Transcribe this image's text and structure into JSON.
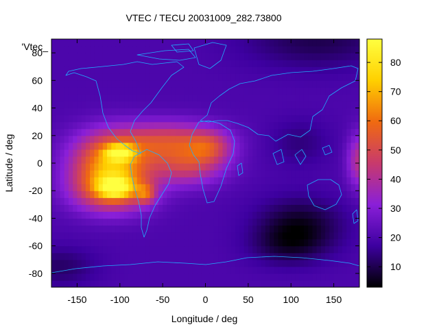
{
  "chart_data": {
    "type": "heatmap",
    "title": "VTEC / TECU 20031009_282.73800",
    "xlabel": "Longitude / deg",
    "ylabel": "Latitude / deg",
    "key_label": "'Vtec_",
    "xlim": [
      -180,
      180
    ],
    "ylim": [
      -90,
      90
    ],
    "x_ticks": [
      -150,
      -100,
      -50,
      0,
      50,
      100,
      150
    ],
    "y_ticks": [
      -80,
      -60,
      -40,
      -20,
      0,
      20,
      40,
      60,
      80
    ],
    "colorbar": {
      "range": [
        3,
        88
      ],
      "ticks": [
        10,
        20,
        30,
        40,
        50,
        60,
        70,
        80
      ],
      "colors": [
        "#000000",
        "#3d00a0",
        "#8a1fd8",
        "#c83a6c",
        "#f06a10",
        "#ffd000",
        "#ffff40"
      ]
    },
    "background_level": 20,
    "regions": [
      {
        "lon": -110,
        "lat": 4,
        "sx": 32,
        "sy": 14,
        "value": 40
      },
      {
        "lon": -110,
        "lat": -18,
        "sx": 32,
        "sy": 12,
        "value": 40
      },
      {
        "lon": -40,
        "lat": 16,
        "sx": 40,
        "sy": 10,
        "value": 28
      },
      {
        "lon": -20,
        "lat": -2,
        "sx": 30,
        "sy": 10,
        "value": 24
      },
      {
        "lon": 5,
        "lat": 12,
        "sx": 18,
        "sy": 8,
        "value": 18
      },
      {
        "lon": -100,
        "lat": 8,
        "sx": 12,
        "sy": 4,
        "value": 30
      },
      {
        "lon": -105,
        "lat": -18,
        "sx": 14,
        "sy": 5,
        "value": 30
      },
      {
        "lon": -70,
        "lat": -22,
        "sx": 8,
        "sy": 5,
        "value": 22
      },
      {
        "lon": 180,
        "lat": 2,
        "sx": 10,
        "sy": 14,
        "value": 22
      },
      {
        "lon": 110,
        "lat": -45,
        "sx": 35,
        "sy": 14,
        "value": -14
      },
      {
        "lon": 95,
        "lat": -60,
        "sx": 30,
        "sy": 10,
        "value": -8
      },
      {
        "lon": 130,
        "lat": 90,
        "sx": 60,
        "sy": 15,
        "value": -10
      },
      {
        "lon": 110,
        "lat": 15,
        "sx": 25,
        "sy": 12,
        "value": -6
      },
      {
        "lon": -170,
        "lat": -75,
        "sx": 30,
        "sy": 10,
        "value": -8
      }
    ]
  }
}
